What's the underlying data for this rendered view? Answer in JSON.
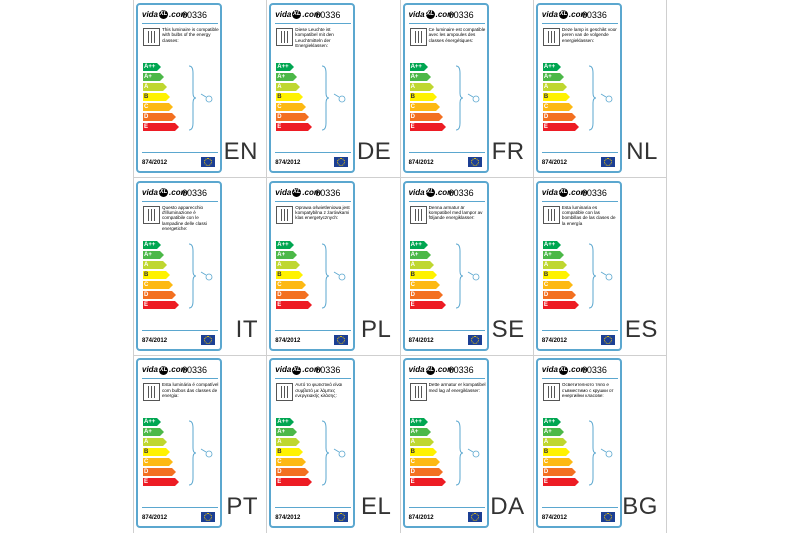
{
  "product_code": "60336",
  "brand": "vidaXL.com",
  "brand_parts": {
    "pre": "vida",
    "mark": "XL",
    "post": ".com"
  },
  "regulation": "874/2012",
  "classes": [
    "A++",
    "A+",
    "A",
    "B",
    "C",
    "D",
    "E"
  ],
  "class_colors": [
    "#00a651",
    "#4cb848",
    "#bfd730",
    "#fff200",
    "#fdb913",
    "#f37021",
    "#ed1c24"
  ],
  "accent_color": "#5ba7cf",
  "cards": [
    {
      "lang": "EN",
      "text": "This luminaire is compatible with bulbs of the energy classes:"
    },
    {
      "lang": "DE",
      "text": "Diese Leuchte ist kompatibel mit den Leuchtmitteln der Energieklassen:"
    },
    {
      "lang": "FR",
      "text": "Ce luminaire est compatible avec les ampoules des classes énergétiques:"
    },
    {
      "lang": "NL",
      "text": "Deze lamp is geschikt voor peren van de volgende energieklassen:"
    },
    {
      "lang": "IT",
      "text": "Questo apparecchio d'illuminazione è compatibile con le lampadine delle classi energetiche:"
    },
    {
      "lang": "PL",
      "text": "Oprawa oświetleniowa jest kompatybilna z żarówkami klas energetycznych:"
    },
    {
      "lang": "SE",
      "text": "Denna armatur är kompatibel med lampor av följande energiklasser:"
    },
    {
      "lang": "ES",
      "text": "Esta luminaria es compatible con las bombillas de las clases de la energía"
    },
    {
      "lang": "PT",
      "text": "Esta luminária é compatível com bulbos das classes de energia:"
    },
    {
      "lang": "EL",
      "text": "Αυτό το φωτιστικό είναι συμβατό με λάμπες ενεργειακής κλάσης:"
    },
    {
      "lang": "DA",
      "text": "Dette armatur er kompatibel med lag af energiklasser:"
    },
    {
      "lang": "BG",
      "text": "Осветителното тяло е съвместимо с крушки от енергийни класове:"
    }
  ]
}
